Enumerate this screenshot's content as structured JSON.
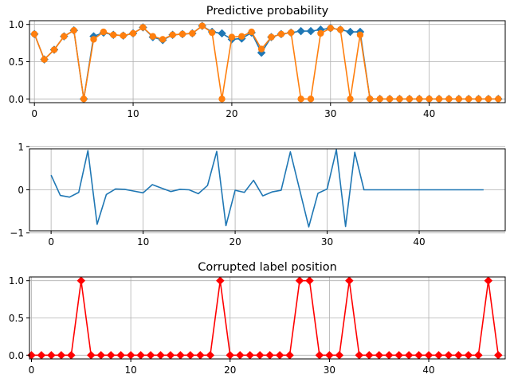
{
  "chart_data": [
    {
      "type": "line",
      "title": "Predictive probability",
      "xlim": [
        -0.5,
        47.7
      ],
      "ylim": [
        -0.05,
        1.05
      ],
      "xticks": [
        0,
        10,
        20,
        30,
        40
      ],
      "yticks": [
        0.0,
        0.5,
        1.0
      ],
      "ytick_labels": [
        "0.0",
        "0.5",
        "1.0"
      ],
      "grid": true,
      "series": [
        {
          "color": "#1f77b4",
          "marker": "diamond",
          "x": [
            0,
            1,
            2,
            3,
            4,
            5,
            6,
            7,
            8,
            9,
            10,
            11,
            12,
            13,
            14,
            15,
            16,
            17,
            18,
            19,
            20,
            21,
            22,
            23,
            24,
            25,
            26,
            27,
            28,
            29,
            30,
            31,
            32,
            33,
            34,
            35,
            36,
            37,
            38,
            39,
            40,
            41,
            42,
            43,
            44,
            45,
            46,
            47
          ],
          "values": [
            0.87,
            0.53,
            0.66,
            0.84,
            0.92,
            0.0,
            0.84,
            0.89,
            0.86,
            0.85,
            0.88,
            0.96,
            0.83,
            0.79,
            0.86,
            0.87,
            0.88,
            0.98,
            0.9,
            0.88,
            0.8,
            0.81,
            0.89,
            0.62,
            0.83,
            0.87,
            0.89,
            0.91,
            0.91,
            0.93,
            0.95,
            0.93,
            0.9,
            0.9,
            0.0,
            0.0,
            0.0,
            0.0,
            0.0,
            0.0,
            0.0,
            0.0,
            0.0,
            0.0,
            0.0,
            0.0,
            0.0,
            0.0
          ]
        },
        {
          "color": "#ff7f0e",
          "marker": "circle",
          "x": [
            0,
            1,
            2,
            3,
            4,
            5,
            6,
            7,
            8,
            9,
            10,
            11,
            12,
            13,
            14,
            15,
            16,
            17,
            18,
            19,
            20,
            21,
            22,
            23,
            24,
            25,
            26,
            27,
            28,
            29,
            30,
            31,
            32,
            33,
            34,
            35,
            36,
            37,
            38,
            39,
            40,
            41,
            42,
            43,
            44,
            45,
            46,
            47
          ],
          "values": [
            0.87,
            0.53,
            0.66,
            0.84,
            0.92,
            0.0,
            0.8,
            0.9,
            0.86,
            0.85,
            0.88,
            0.96,
            0.84,
            0.8,
            0.86,
            0.87,
            0.88,
            0.98,
            0.89,
            0.0,
            0.83,
            0.84,
            0.9,
            0.67,
            0.83,
            0.87,
            0.89,
            0.0,
            0.0,
            0.88,
            0.95,
            0.93,
            0.0,
            0.86,
            0.0,
            0.0,
            0.0,
            0.0,
            0.0,
            0.0,
            0.0,
            0.0,
            0.0,
            0.0,
            0.0,
            0.0,
            0.0,
            0.0
          ]
        }
      ]
    },
    {
      "type": "line",
      "title": "",
      "xlim": [
        -2.35,
        49.35
      ],
      "ylim": [
        -0.95,
        0.95
      ],
      "xticks": [
        0,
        10,
        20,
        30,
        40
      ],
      "yticks": [
        -1,
        0,
        1
      ],
      "ytick_labels": [
        "−1",
        "0",
        "1"
      ],
      "grid": true,
      "series": [
        {
          "color": "#1f77b4",
          "marker": "none",
          "x": [
            0,
            1,
            2,
            3,
            4,
            5,
            6,
            7,
            8,
            9,
            10,
            11,
            12,
            13,
            14,
            15,
            16,
            17,
            18,
            19,
            20,
            21,
            22,
            23,
            24,
            25,
            26,
            27,
            28,
            29,
            30,
            31,
            32,
            33,
            34,
            35,
            36,
            37,
            38,
            39,
            40,
            41,
            42,
            43,
            44,
            45,
            46,
            47
          ],
          "values": [
            0.34,
            -0.13,
            -0.17,
            -0.06,
            0.91,
            -0.8,
            -0.11,
            0.02,
            0.01,
            -0.03,
            -0.07,
            0.12,
            0.04,
            -0.04,
            0.01,
            0.0,
            -0.09,
            0.1,
            0.89,
            -0.83,
            -0.01,
            -0.06,
            0.22,
            -0.14,
            -0.05,
            -0.01,
            0.88,
            0.01,
            -0.86,
            -0.08,
            0.02,
            0.93,
            -0.85,
            0.87,
            0.0,
            0.0,
            0.0,
            0.0,
            0.0,
            0.0,
            0.0,
            0.0,
            0.0,
            0.0,
            0.0,
            0.0,
            0.0,
            0.0
          ]
        }
      ]
    },
    {
      "type": "line",
      "title": "Corrupted label position",
      "xlim": [
        -0.2,
        47.7
      ],
      "ylim": [
        -0.05,
        1.05
      ],
      "xticks": [
        0,
        10,
        20,
        30,
        40
      ],
      "yticks": [
        0.0,
        0.5,
        1.0
      ],
      "ytick_labels": [
        "0.0",
        "0.5",
        "1.0"
      ],
      "grid": true,
      "series": [
        {
          "color": "#ff0000",
          "marker": "diamond",
          "x": [
            0,
            1,
            2,
            3,
            4,
            5,
            6,
            7,
            8,
            9,
            10,
            11,
            12,
            13,
            14,
            15,
            16,
            17,
            18,
            19,
            20,
            21,
            22,
            23,
            24,
            25,
            26,
            27,
            28,
            29,
            30,
            31,
            32,
            33,
            34,
            35,
            36,
            37,
            38,
            39,
            40,
            41,
            42,
            43,
            44,
            45,
            46,
            47
          ],
          "values": [
            0,
            0,
            0,
            0,
            0,
            1,
            0,
            0,
            0,
            0,
            0,
            0,
            0,
            0,
            0,
            0,
            0,
            0,
            0,
            1,
            0,
            0,
            0,
            0,
            0,
            0,
            0,
            1,
            1,
            0,
            0,
            0,
            1,
            0,
            0,
            0,
            0,
            0,
            0,
            0,
            0,
            0,
            0,
            0,
            0,
            0,
            1,
            0
          ]
        }
      ]
    }
  ]
}
